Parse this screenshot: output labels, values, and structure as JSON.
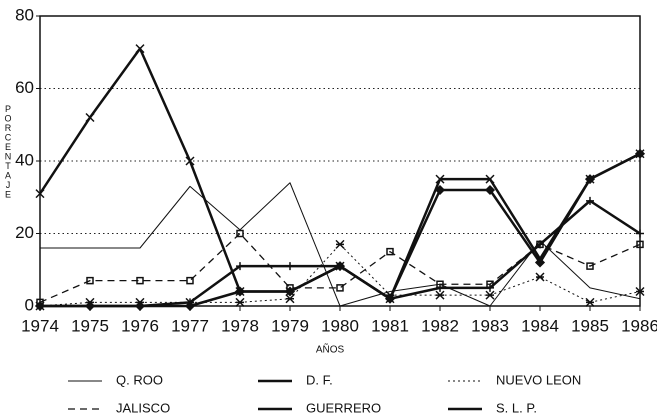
{
  "chart_data": {
    "type": "line",
    "ylabel": "PORCENTAJE",
    "xlabel": "AÑOS",
    "x": [
      1974,
      1975,
      1976,
      1977,
      1978,
      1979,
      1980,
      1981,
      1982,
      1983,
      1984,
      1985,
      1986
    ],
    "xlim": [
      1974,
      1986
    ],
    "xticks": [
      1974,
      1975,
      1976,
      1977,
      1978,
      1979,
      1980,
      1981,
      1982,
      1983,
      1984,
      1985,
      1986
    ],
    "ylim": [
      0,
      80
    ],
    "yticks": [
      0,
      20,
      40,
      60,
      80
    ],
    "grid": true,
    "legend": "bottom",
    "series": [
      {
        "name": "Q. ROO",
        "color": "#111111",
        "width": 1,
        "dash": "none",
        "marker": "none",
        "values": [
          16,
          16,
          16,
          33,
          21,
          34,
          0,
          4,
          6,
          0,
          18,
          5,
          2
        ]
      },
      {
        "name": "D. F.",
        "color": "#111111",
        "width": 2.5,
        "dash": "none",
        "marker": "plus",
        "values": [
          0,
          0,
          0,
          1,
          11,
          11,
          11,
          2,
          5,
          5,
          17,
          29,
          20
        ]
      },
      {
        "name": "NUEVO LEON",
        "color": "#111111",
        "width": 1,
        "dash": "dot",
        "marker": "star",
        "values": [
          0,
          1,
          1,
          1,
          1,
          2,
          17,
          3,
          3,
          3,
          8,
          1,
          4
        ]
      },
      {
        "name": "JALISCO",
        "color": "#111111",
        "width": 1.3,
        "dash": "dash",
        "marker": "square",
        "values": [
          1,
          7,
          7,
          7,
          20,
          5,
          5,
          15,
          6,
          6,
          17,
          11,
          17
        ]
      },
      {
        "name": "GUERRERO",
        "color": "#111111",
        "width": 2.5,
        "dash": "none",
        "marker": "x",
        "values": [
          31,
          52,
          71,
          40,
          4,
          4,
          11,
          2,
          35,
          35,
          13,
          35,
          42
        ]
      },
      {
        "name": "S. L. P.",
        "color": "#111111",
        "width": 2.5,
        "dash": "none",
        "marker": "diamond",
        "values": [
          0,
          0,
          0,
          0,
          4,
          4,
          11,
          2,
          32,
          32,
          12,
          35,
          42
        ]
      }
    ]
  }
}
